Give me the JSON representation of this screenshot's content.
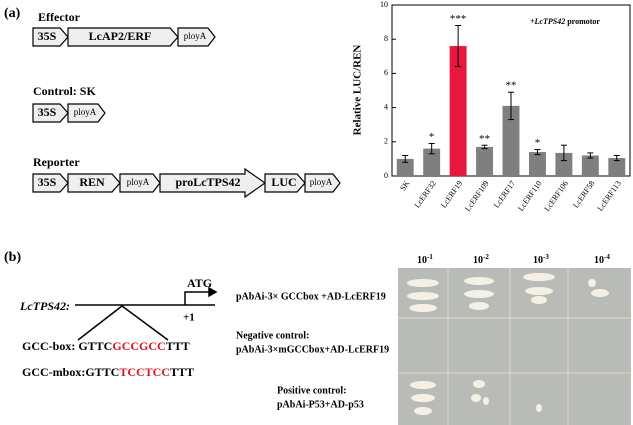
{
  "panel_a": {
    "label": "(a)",
    "effector": {
      "title": "Effector",
      "parts": [
        "35S",
        "LcAP2/ERF",
        "ployA"
      ]
    },
    "control": {
      "title": "Control: SK",
      "parts": [
        "35S",
        "ployA"
      ]
    },
    "reporter": {
      "title": "Reporter",
      "parts": [
        "35S",
        "REN",
        "ployA",
        "proLcTPS42",
        "LUC",
        "ployA"
      ]
    }
  },
  "chart_data": {
    "type": "bar",
    "y_label": "Relative LUC/REN",
    "annotation": {
      "italic": "+LcTPS42",
      "rest": " promotor"
    },
    "categories": [
      "SK",
      "LcERF32",
      "LcERF19",
      "LcERF109",
      "LcERF17",
      "LcERF110",
      "LcERF106",
      "LcERF58",
      "LcERF113"
    ],
    "values": [
      1.0,
      1.6,
      7.6,
      1.7,
      4.1,
      1.4,
      1.35,
      1.2,
      1.05
    ],
    "errors": [
      0.2,
      0.3,
      1.2,
      0.1,
      0.8,
      0.15,
      0.45,
      0.15,
      0.15
    ],
    "significance": [
      null,
      "*",
      "***",
      "**",
      "**",
      "*",
      null,
      null,
      null
    ],
    "colors": [
      "#7f7f7f",
      "#7f7f7f",
      "#e8173f",
      "#7f7f7f",
      "#7f7f7f",
      "#7f7f7f",
      "#7f7f7f",
      "#7f7f7f",
      "#7f7f7f"
    ],
    "ylim": [
      0,
      10
    ],
    "yticks": [
      0,
      2,
      4,
      6,
      8,
      10
    ]
  },
  "panel_b": {
    "label": "(b)",
    "gene": "LcTPS42:",
    "start": "ATG",
    "position": "+1",
    "gcc_box": {
      "label": "GCC-box: ",
      "parts": [
        "GTTC",
        "GCCGCC",
        "TTT"
      ]
    },
    "gcc_mbox": {
      "label": "GCC-mbox:",
      "parts": [
        "GTTC",
        "TCCTCC",
        "TTT"
      ]
    },
    "dilutions": [
      {
        "base": "10",
        "exp": "-1"
      },
      {
        "base": "10",
        "exp": "-2"
      },
      {
        "base": "10",
        "exp": "-3"
      },
      {
        "base": "10",
        "exp": "-4"
      }
    ],
    "rows": [
      [
        "pAbAi-3× GCCbox +AD-LcERF19"
      ],
      [
        "Negative control:",
        "pAbAi-3×mGCCbox+AD-LcERF19"
      ],
      [
        "Positive control:",
        "pAbAi-P53+AD-p53"
      ]
    ]
  }
}
